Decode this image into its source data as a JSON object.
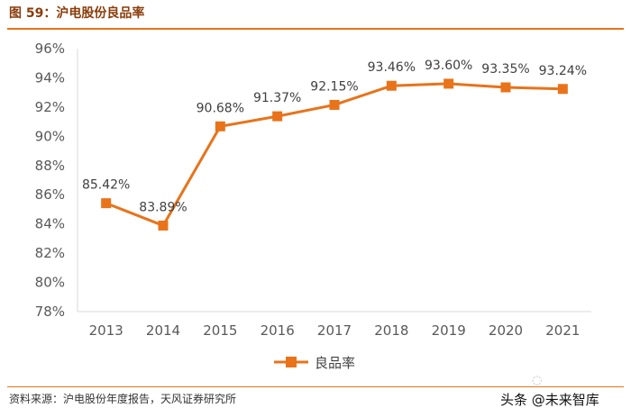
{
  "header": {
    "title": "图 59：沪电股份良品率"
  },
  "footer": {
    "source": "资料来源：沪电股份年度报告，天风证券研究所",
    "watermark": "头条 @未来智库"
  },
  "colors": {
    "series": "#e8731b",
    "accent": "#e8731b",
    "axis": "#d9d9d9"
  },
  "chart_data": {
    "type": "line",
    "title": "沪电股份良品率",
    "xlabel": "",
    "ylabel": "",
    "categories": [
      "2013",
      "2014",
      "2015",
      "2016",
      "2017",
      "2018",
      "2019",
      "2020",
      "2021"
    ],
    "series": [
      {
        "name": "良品率",
        "values": [
          85.42,
          83.89,
          90.68,
          91.37,
          92.15,
          93.46,
          93.6,
          93.35,
          93.24
        ],
        "labels": [
          "85.42%",
          "83.89%",
          "90.68%",
          "91.37%",
          "92.15%",
          "93.46%",
          "93.60%",
          "93.35%",
          "93.24%"
        ]
      }
    ],
    "ylim": [
      78,
      96
    ],
    "yticks": [
      78,
      80,
      82,
      84,
      86,
      88,
      90,
      92,
      94,
      96
    ],
    "ytick_labels": [
      "78%",
      "80%",
      "82%",
      "84%",
      "86%",
      "88%",
      "90%",
      "92%",
      "94%",
      "96%"
    ],
    "grid": false,
    "legend": "bottom-center"
  }
}
